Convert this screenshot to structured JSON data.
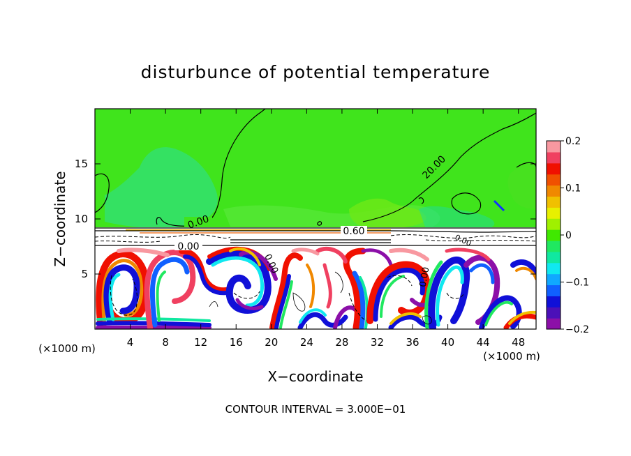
{
  "chart_data": {
    "type": "heatmap",
    "title": "disturbunce of potential temperature",
    "xlabel": "X−coordinate",
    "ylabel": "Z−coordinate",
    "x_unit": "(×1000 m)",
    "x_unit_right": "(×1000 m)",
    "xlim": [
      0,
      50
    ],
    "ylim": [
      0,
      20
    ],
    "x_ticks": [
      "4",
      "8",
      "12",
      "16",
      "20",
      "24",
      "28",
      "32",
      "36",
      "40",
      "44",
      "48"
    ],
    "y_ticks": [
      "5",
      "10",
      "15"
    ],
    "colorbar": {
      "range": [
        -0.2,
        0.2
      ],
      "tick_labels": [
        "0.2",
        "0.1",
        "0",
        "−0.1",
        "−0.2"
      ],
      "colors": [
        "#8c0fa8",
        "#4b10b8",
        "#1010d8",
        "#1060ff",
        "#10a8ff",
        "#10e8f0",
        "#10e8a0",
        "#20e860",
        "#40e800",
        "#a0f000",
        "#e8f000",
        "#f0c000",
        "#f08800",
        "#f05000",
        "#f01000",
        "#f04060",
        "#f898a0"
      ]
    },
    "contour_labels": [
      "0.00",
      "0.00",
      "0.00",
      "20.00",
      "0.60",
      "0.00",
      "0.00"
    ],
    "footer": "CONTOUR INTERVAL = 3.000E−01"
  }
}
